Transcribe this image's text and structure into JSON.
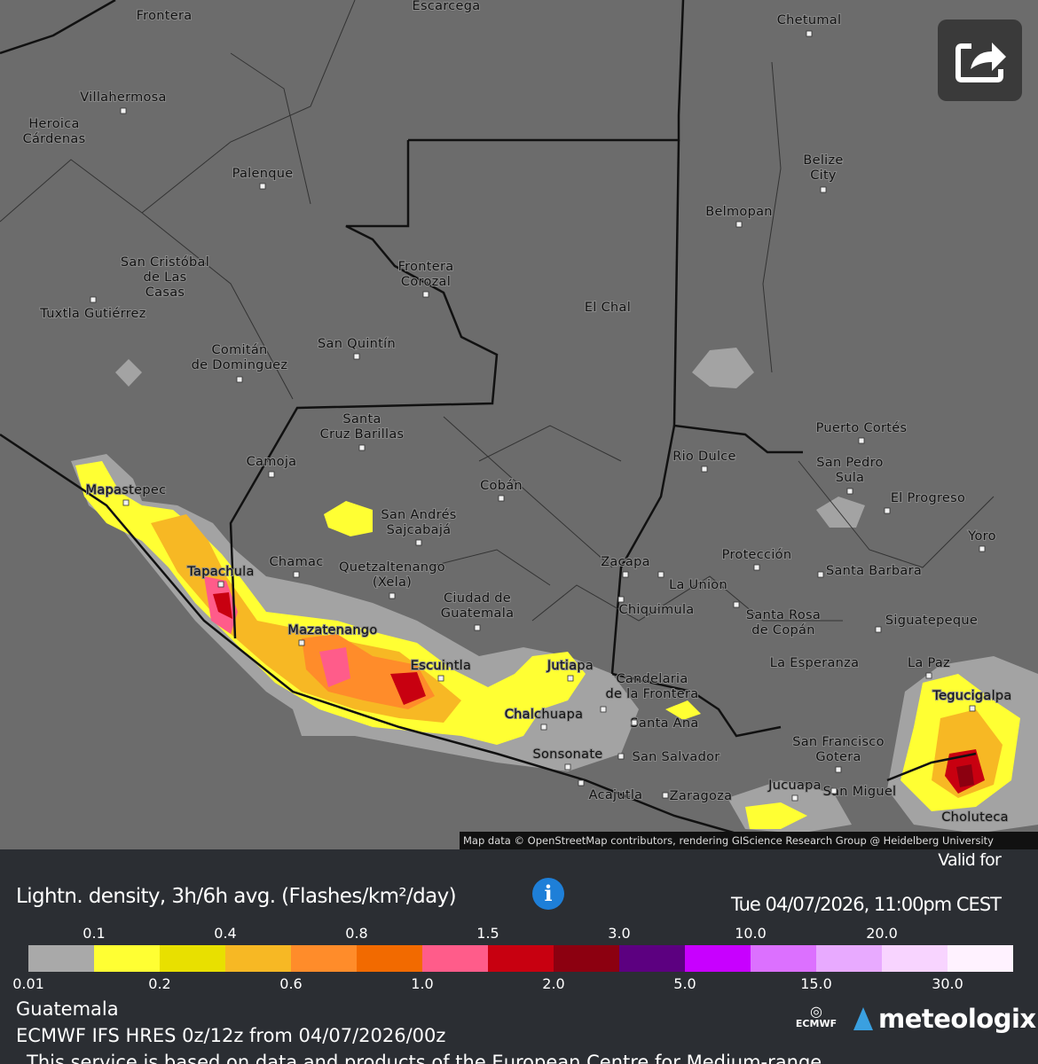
{
  "map": {
    "places": [
      {
        "lines": [
          "Frontera"
        ]
      },
      {
        "lines": [
          "Escarcega"
        ]
      },
      {
        "lines": [
          "Chetumal"
        ]
      },
      {
        "lines": [
          "Villahermosa"
        ]
      },
      {
        "lines": [
          "Heroica",
          "Cárdenas"
        ]
      },
      {
        "lines": [
          "Palenque"
        ]
      },
      {
        "lines": [
          "Belize",
          "City"
        ]
      },
      {
        "lines": [
          "Belmopan"
        ]
      },
      {
        "lines": [
          "San Cristóbal",
          "de Las",
          "Casas"
        ]
      },
      {
        "lines": [
          "Frontera",
          "Corozal"
        ]
      },
      {
        "lines": [
          "El Chal"
        ]
      },
      {
        "lines": [
          "Tuxtla Gutiérrez"
        ]
      },
      {
        "lines": [
          "San Quintín"
        ]
      },
      {
        "lines": [
          "Comitán",
          "de Dominguez"
        ]
      },
      {
        "lines": [
          "Santa",
          "Cruz Barillas"
        ]
      },
      {
        "lines": [
          "Puerto Cortés"
        ]
      },
      {
        "lines": [
          "Rio Dulce"
        ]
      },
      {
        "lines": [
          "Camoja"
        ]
      },
      {
        "lines": [
          "San Pedro",
          "Sula"
        ]
      },
      {
        "lines": [
          "Cobán"
        ]
      },
      {
        "lines": [
          "Mapastepec"
        ]
      },
      {
        "lines": [
          "El Progreso"
        ]
      },
      {
        "lines": [
          "San Andrés",
          "Sajcabajá"
        ]
      },
      {
        "lines": [
          "Yoro"
        ]
      },
      {
        "lines": [
          "Protección"
        ]
      },
      {
        "lines": [
          "Chamac"
        ]
      },
      {
        "lines": [
          "Quetzaltenango",
          "(Xela)"
        ]
      },
      {
        "lines": [
          "Zacapa"
        ]
      },
      {
        "lines": [
          "Tapachula"
        ]
      },
      {
        "lines": [
          "Santa Barbara"
        ]
      },
      {
        "lines": [
          "La Union"
        ]
      },
      {
        "lines": [
          "Ciudad de",
          "Guatemala"
        ]
      },
      {
        "lines": [
          "Chiquimula"
        ]
      },
      {
        "lines": [
          "Santa Rosa",
          "de Copán"
        ]
      },
      {
        "lines": [
          "Siguatepeque"
        ]
      },
      {
        "lines": [
          "Mazatenango"
        ]
      },
      {
        "lines": [
          "Escuintla"
        ]
      },
      {
        "lines": [
          "Jutiapa"
        ]
      },
      {
        "lines": [
          "La Esperanza"
        ]
      },
      {
        "lines": [
          "La Paz"
        ]
      },
      {
        "lines": [
          "Candelaria",
          "de la Frontera"
        ]
      },
      {
        "lines": [
          "Tegucigalpa"
        ]
      },
      {
        "lines": [
          "Chalchuapa"
        ]
      },
      {
        "lines": [
          "Santa Ana"
        ]
      },
      {
        "lines": [
          "San Francisco",
          "Gotera"
        ]
      },
      {
        "lines": [
          "Sonsonate"
        ]
      },
      {
        "lines": [
          "San Salvador"
        ]
      },
      {
        "lines": [
          "San Miguel"
        ]
      },
      {
        "lines": [
          "Jucuapa"
        ]
      },
      {
        "lines": [
          "Acajutla"
        ]
      },
      {
        "lines": [
          "Zaragoza"
        ]
      },
      {
        "lines": [
          "Choluteca"
        ]
      }
    ],
    "attribution": "Map data © OpenStreetMap contributors, rendering GIScience Research Group @ Heidelberg University"
  },
  "legend": {
    "title": "Lightn. density, 3h/6h avg. (Flashes/km²/day)",
    "valid_label": "Valid for",
    "valid_time": "Tue 04/07/2026, 11:00pm CEST",
    "ticks": [
      0.01,
      0.1,
      0.2,
      0.4,
      0.6,
      0.8,
      {
        "value": 1,
        "label": "1.0"
      },
      1.5,
      {
        "value": 2,
        "label": "2.0"
      },
      {
        "value": 3,
        "label": "3.0"
      },
      {
        "value": 5,
        "label": "5.0"
      },
      {
        "value": 10,
        "label": "10.0"
      },
      {
        "value": 15,
        "label": "15.0"
      },
      {
        "value": 20,
        "label": "20.0"
      },
      {
        "value": 30,
        "label": "30.0"
      }
    ],
    "colors": [
      "#a9a9a9",
      "#ffff33",
      "#e8e000",
      "#f7b824",
      "#ff8c2a",
      "#f26a00",
      "#ff5c8a",
      "#c80010",
      "#8c0010",
      "#5c0080",
      "#c800ff",
      "#dc70ff",
      "#e8aaff",
      "#f8d4ff",
      "#fff2ff"
    ]
  },
  "footer": {
    "region": "Guatemala",
    "model": "ECMWF IFS HRES 0z/12z from 04/07/2026/00z",
    "notice": "This service is based on data and products of the European Centre for Medium-range",
    "logo_ecmwf": "ECMWF",
    "logo_brand": "meteologix"
  }
}
